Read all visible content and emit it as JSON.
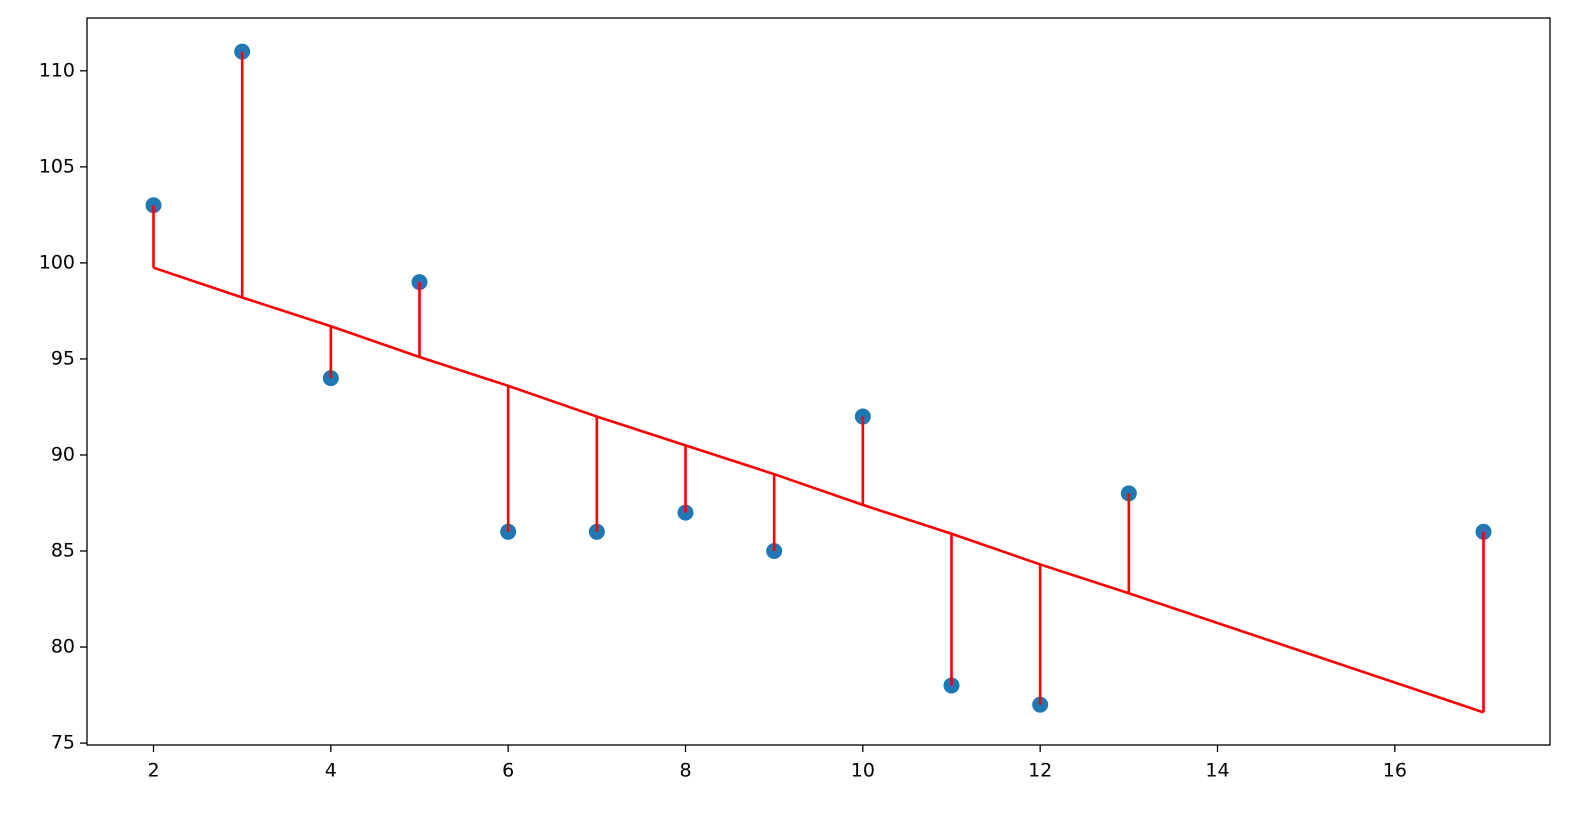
{
  "chart_data": {
    "type": "scatter",
    "x": [
      2,
      3,
      4,
      5,
      6,
      7,
      8,
      9,
      10,
      11,
      12,
      13,
      17
    ],
    "y": [
      103,
      111,
      94,
      99,
      86,
      86,
      87,
      85,
      92,
      78,
      77,
      88,
      86
    ],
    "fitted": [
      99.75,
      98.2,
      96.7,
      95.1,
      93.6,
      92.0,
      90.5,
      89.0,
      87.4,
      85.9,
      84.3,
      82.8,
      76.6
    ],
    "point_color": "#1f77b4",
    "line_color": "#ff0000",
    "xlim": [
      1.25,
      17.75
    ],
    "xticks": [
      2,
      4,
      6,
      8,
      10,
      12,
      14,
      16
    ],
    "ylim": [
      74.9,
      112.75
    ],
    "yticks": [
      75,
      80,
      85,
      90,
      95,
      100,
      105,
      110
    ],
    "grid": false
  }
}
